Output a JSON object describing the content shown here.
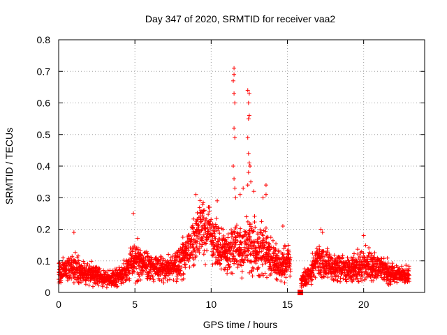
{
  "chart_data": {
    "type": "scatter",
    "title": "Day 347 of 2020, SRMTID for receiver vaa2",
    "xlabel": "GPS time / hours",
    "ylabel": "SRMTID / TECUs",
    "xlim": [
      0,
      24
    ],
    "ylim": [
      0,
      0.8
    ],
    "xticks": [
      0,
      5,
      10,
      15,
      20
    ],
    "yticks": [
      0,
      0.1,
      0.2,
      0.3,
      0.4,
      0.5,
      0.6,
      0.7,
      0.8
    ],
    "xtick_labels": [
      "0",
      "5",
      "10",
      "15",
      "20"
    ],
    "ytick_labels": [
      "0",
      "0.1",
      "0.2",
      "0.3",
      "0.4",
      "0.5",
      "0.6",
      "0.7",
      "0.8"
    ],
    "grid": true,
    "marker": "plus",
    "color": "#ff0000",
    "gap": {
      "start": 15.2,
      "end": 15.9,
      "marker_x": 15.85,
      "marker_y": 0.0
    },
    "envelope": {
      "x": [
        0,
        0.5,
        1,
        1.5,
        2,
        2.5,
        3,
        3.5,
        4,
        4.5,
        5,
        5.5,
        6,
        6.5,
        7,
        7.5,
        8,
        8.5,
        9,
        9.5,
        10,
        10.5,
        11,
        11.5,
        12,
        12.5,
        13,
        13.5,
        14,
        14.5,
        15,
        15.2,
        15.9,
        16.5,
        17,
        17.5,
        18,
        18.5,
        19,
        19.5,
        20,
        20.5,
        21,
        21.5,
        22,
        22.5,
        23
      ],
      "center": [
        0.06,
        0.075,
        0.08,
        0.065,
        0.06,
        0.055,
        0.045,
        0.045,
        0.05,
        0.07,
        0.11,
        0.09,
        0.085,
        0.08,
        0.075,
        0.08,
        0.1,
        0.13,
        0.18,
        0.2,
        0.18,
        0.15,
        0.12,
        0.14,
        0.14,
        0.15,
        0.14,
        0.13,
        0.11,
        0.08,
        0.1,
        0.09,
        0.04,
        0.06,
        0.1,
        0.09,
        0.08,
        0.075,
        0.07,
        0.075,
        0.09,
        0.085,
        0.075,
        0.07,
        0.06,
        0.055,
        0.06
      ],
      "spread": [
        0.04,
        0.04,
        0.05,
        0.035,
        0.035,
        0.03,
        0.025,
        0.025,
        0.03,
        0.04,
        0.07,
        0.05,
        0.05,
        0.045,
        0.04,
        0.045,
        0.06,
        0.07,
        0.09,
        0.09,
        0.08,
        0.08,
        0.07,
        0.09,
        0.09,
        0.09,
        0.08,
        0.08,
        0.06,
        0.05,
        0.06,
        0.04,
        0.03,
        0.04,
        0.06,
        0.05,
        0.04,
        0.04,
        0.04,
        0.045,
        0.05,
        0.05,
        0.04,
        0.04,
        0.035,
        0.03,
        0.03
      ]
    },
    "outliers": [
      {
        "x": 1.0,
        "y": 0.19
      },
      {
        "x": 4.9,
        "y": 0.25
      },
      {
        "x": 9.0,
        "y": 0.31
      },
      {
        "x": 11.5,
        "y": 0.71
      },
      {
        "x": 11.5,
        "y": 0.69
      },
      {
        "x": 11.45,
        "y": 0.67
      },
      {
        "x": 11.5,
        "y": 0.63
      },
      {
        "x": 11.55,
        "y": 0.6
      },
      {
        "x": 11.5,
        "y": 0.52
      },
      {
        "x": 11.55,
        "y": 0.49
      },
      {
        "x": 11.45,
        "y": 0.4
      },
      {
        "x": 11.5,
        "y": 0.36
      },
      {
        "x": 11.55,
        "y": 0.33
      },
      {
        "x": 11.6,
        "y": 0.3
      },
      {
        "x": 12.4,
        "y": 0.64
      },
      {
        "x": 12.5,
        "y": 0.63
      },
      {
        "x": 12.45,
        "y": 0.6
      },
      {
        "x": 12.5,
        "y": 0.56
      },
      {
        "x": 12.45,
        "y": 0.55
      },
      {
        "x": 12.4,
        "y": 0.49
      },
      {
        "x": 12.45,
        "y": 0.44
      },
      {
        "x": 12.5,
        "y": 0.41
      },
      {
        "x": 12.55,
        "y": 0.4
      },
      {
        "x": 12.45,
        "y": 0.38
      },
      {
        "x": 12.6,
        "y": 0.35
      },
      {
        "x": 12.4,
        "y": 0.34
      },
      {
        "x": 12.1,
        "y": 0.33
      },
      {
        "x": 12.8,
        "y": 0.32
      },
      {
        "x": 13.6,
        "y": 0.34
      },
      {
        "x": 13.6,
        "y": 0.31
      },
      {
        "x": 13.4,
        "y": 0.3
      },
      {
        "x": 11.9,
        "y": 0.31
      },
      {
        "x": 10.4,
        "y": 0.29
      },
      {
        "x": 9.9,
        "y": 0.27
      },
      {
        "x": 17.2,
        "y": 0.2
      },
      {
        "x": 17.3,
        "y": 0.19
      },
      {
        "x": 20.0,
        "y": 0.18
      },
      {
        "x": 14.7,
        "y": 0.21
      }
    ]
  }
}
